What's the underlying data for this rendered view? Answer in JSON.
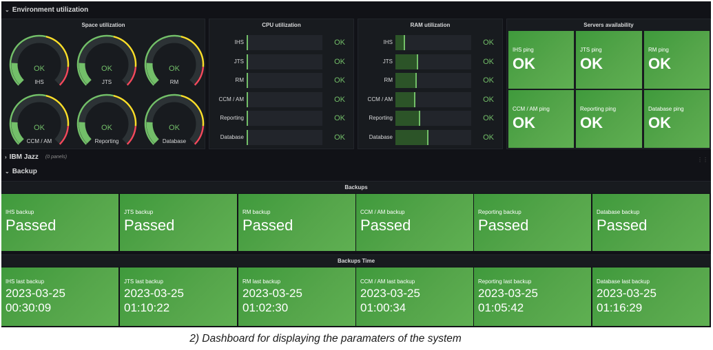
{
  "rows": {
    "environment": "Environment utilization",
    "ibm_jazz": "IBM Jazz",
    "ibm_jazz_note": "(0 panels)",
    "backup": "Backup"
  },
  "space": {
    "title": "Space utilization",
    "gauges": [
      {
        "label": "IHS",
        "value": "OK",
        "fraction": 0.18
      },
      {
        "label": "JTS",
        "value": "OK",
        "fraction": 0.18
      },
      {
        "label": "RM",
        "value": "OK",
        "fraction": 0.18
      },
      {
        "label": "CCM / AM",
        "value": "OK",
        "fraction": 0.18
      },
      {
        "label": "Reporting",
        "value": "OK",
        "fraction": 0.18
      },
      {
        "label": "Database",
        "value": "OK",
        "fraction": 0.18
      }
    ],
    "colors": {
      "green": "#73bf69",
      "yellow": "#fade2a",
      "red": "#f2495c",
      "track": "#2c3235"
    }
  },
  "cpu": {
    "title": "CPU utilization",
    "rows": [
      {
        "label": "IHS",
        "status": "OK",
        "fraction": 0.02
      },
      {
        "label": "JTS",
        "status": "OK",
        "fraction": 0.02
      },
      {
        "label": "RM",
        "status": "OK",
        "fraction": 0.02
      },
      {
        "label": "CCM / AM",
        "status": "OK",
        "fraction": 0.02
      },
      {
        "label": "Reporting",
        "status": "OK",
        "fraction": 0.02
      },
      {
        "label": "Database",
        "status": "OK",
        "fraction": 0.02
      }
    ]
  },
  "ram": {
    "title": "RAM utilization",
    "rows": [
      {
        "label": "IHS",
        "status": "OK",
        "fraction": 0.13
      },
      {
        "label": "JTS",
        "status": "OK",
        "fraction": 0.3
      },
      {
        "label": "RM",
        "status": "OK",
        "fraction": 0.28
      },
      {
        "label": "CCM / AM",
        "status": "OK",
        "fraction": 0.26
      },
      {
        "label": "Reporting",
        "status": "OK",
        "fraction": 0.33
      },
      {
        "label": "Database",
        "status": "OK",
        "fraction": 0.44
      }
    ]
  },
  "servers": {
    "title": "Servers availability",
    "tiles": [
      {
        "label": "IHS ping",
        "value": "OK"
      },
      {
        "label": "JTS ping",
        "value": "OK"
      },
      {
        "label": "RM ping",
        "value": "OK"
      },
      {
        "label": "CCM / AM ping",
        "value": "OK"
      },
      {
        "label": "Reporting ping",
        "value": "OK"
      },
      {
        "label": "Database ping",
        "value": "OK"
      }
    ]
  },
  "backups": {
    "title": "Backups",
    "tiles": [
      {
        "label": "IHS backup",
        "value": "Passed"
      },
      {
        "label": "JTS backup",
        "value": "Passed"
      },
      {
        "label": "RM backup",
        "value": "Passed"
      },
      {
        "label": "CCM / AM backup",
        "value": "Passed"
      },
      {
        "label": "Reporting backup",
        "value": "Passed"
      },
      {
        "label": "Database backup",
        "value": "Passed"
      }
    ]
  },
  "backups_time": {
    "title": "Backups Time",
    "tiles": [
      {
        "label": "IHS last backup",
        "date": "2023-03-25",
        "time": "00:30:09"
      },
      {
        "label": "JTS last backup",
        "date": "2023-03-25",
        "time": "01:10:22"
      },
      {
        "label": "RM last backup",
        "date": "2023-03-25",
        "time": "01:02:30"
      },
      {
        "label": "CCM / AM last backup",
        "date": "2023-03-25",
        "time": "01:00:34"
      },
      {
        "label": "Reporting last backup",
        "date": "2023-03-25",
        "time": "01:05:42"
      },
      {
        "label": "Database last backup",
        "date": "2023-03-25",
        "time": "01:16:29"
      }
    ]
  },
  "caption": "2) Dashboard for displaying the paramaters of the system"
}
